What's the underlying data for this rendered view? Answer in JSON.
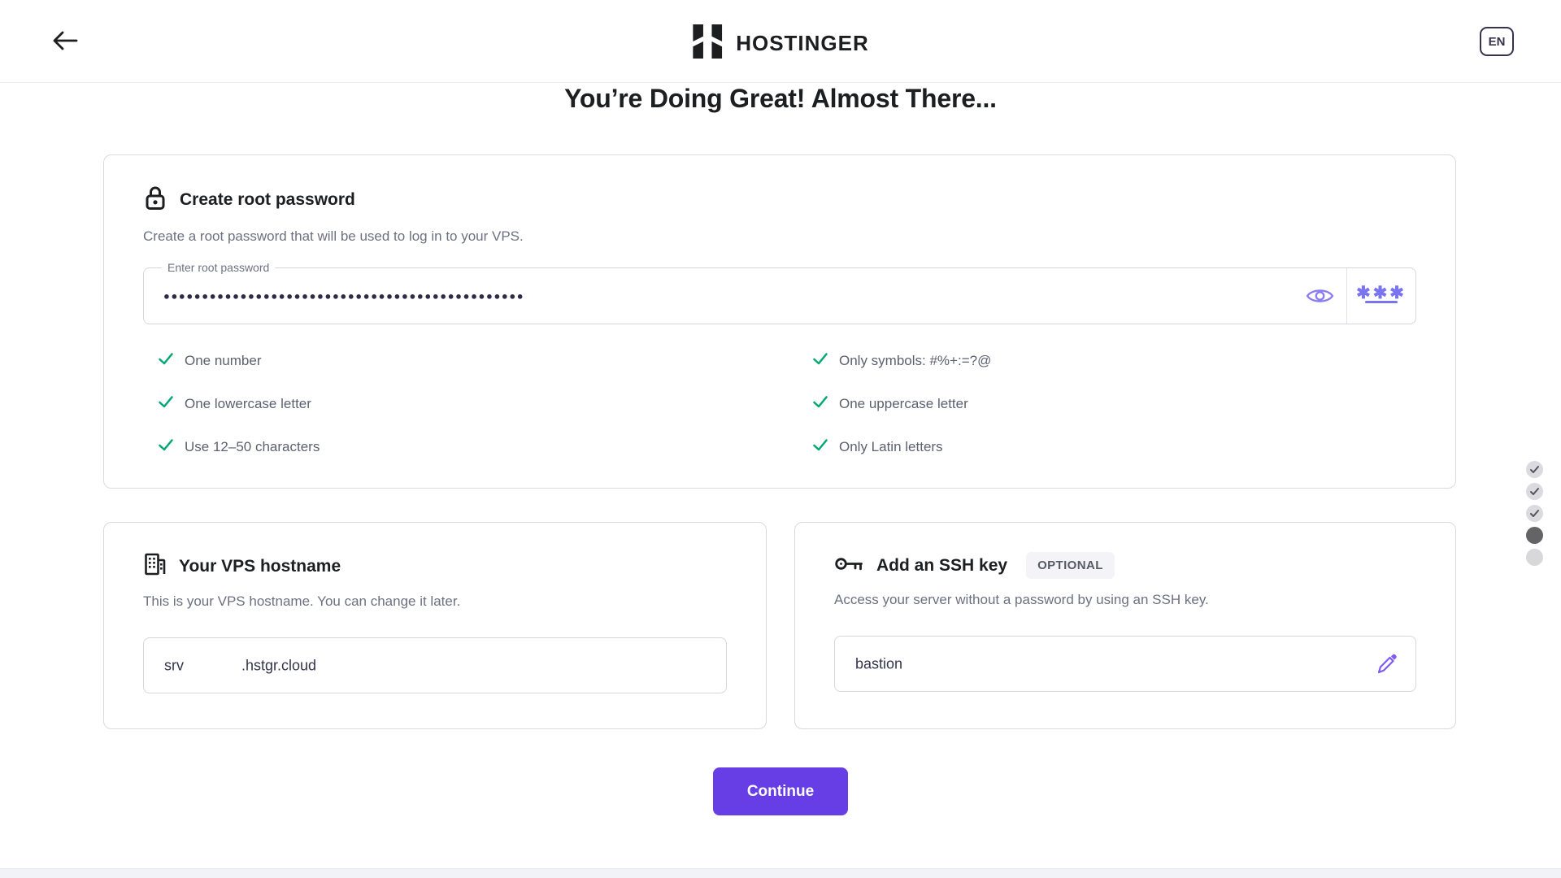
{
  "header": {
    "logo_text": "HOSTINGER",
    "language": "EN"
  },
  "heading": "You’re Doing Great! Almost There...",
  "password_card": {
    "title": "Create root password",
    "description": "Create a root password that will be used to log in to your VPS.",
    "input_label": "Enter root password",
    "masked_value": "●●●●●●●●●●●●●●●●●●●●●●●●●●●●●●●●●●●●●●●●●●●●●●●",
    "requirements": [
      "One number",
      "Only symbols: #%+:=?@",
      "One lowercase letter",
      "One uppercase letter",
      "Use 12–50 characters",
      "Only Latin letters"
    ]
  },
  "hostname_card": {
    "title": "Your VPS hostname",
    "description": "This is your VPS hostname. You can change it later.",
    "value": "srv",
    "suffix": ".hstgr.cloud"
  },
  "ssh_card": {
    "title": "Add an SSH key",
    "badge": "OPTIONAL",
    "description": "Access your server without a password by using an SSH key.",
    "value": "bastion"
  },
  "actions": {
    "continue_label": "Continue"
  },
  "stepper": {
    "steps": [
      "done",
      "done",
      "done",
      "current",
      "upcoming"
    ]
  },
  "colors": {
    "brand_purple": "#673de6",
    "accent_light_purple": "#8a7cf2",
    "success_green": "#00a876",
    "text_dark": "#1d1e20",
    "text_navy": "#36344d",
    "text_gray": "#6d7081"
  }
}
